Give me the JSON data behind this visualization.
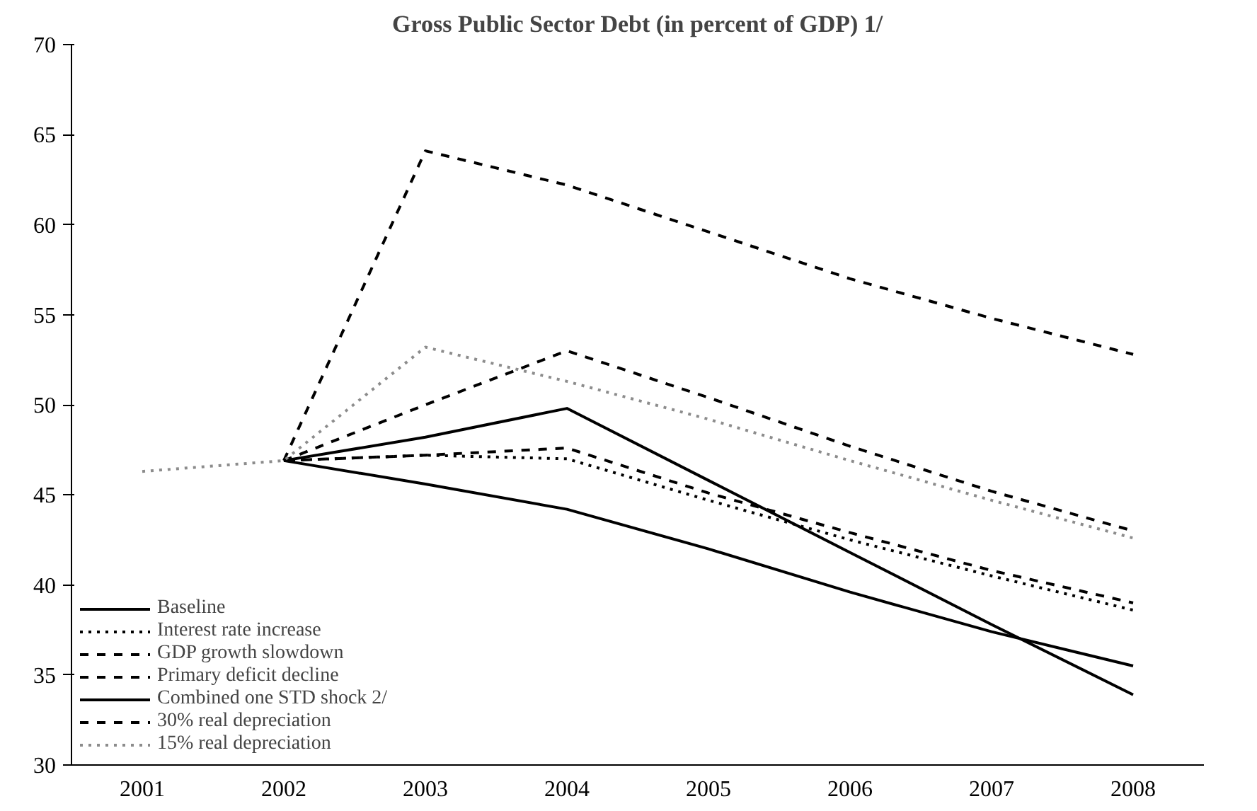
{
  "chart_data": {
    "type": "line",
    "title": "Gross Public Sector Debt (in percent of GDP) 1/",
    "categories": [
      "2001",
      "2002",
      "2003",
      "2004",
      "2005",
      "2006",
      "2007",
      "2008"
    ],
    "ylim": [
      30,
      70
    ],
    "yticks": [
      30,
      35,
      40,
      45,
      50,
      55,
      60,
      65,
      70
    ],
    "grid": false,
    "legend": "bottom left",
    "marker": "none",
    "series": [
      {
        "name": "Baseline",
        "color": "#000000",
        "line_style": "solid",
        "values": [
          null,
          46.9,
          45.6,
          44.2,
          42.0,
          39.6,
          37.4,
          35.5
        ]
      },
      {
        "name": "Interest rate increase",
        "color": "#000000",
        "line_style": "dotted",
        "values": [
          null,
          46.9,
          47.2,
          47.0,
          44.7,
          42.5,
          40.5,
          38.6
        ]
      },
      {
        "name": "GDP growth slowdown",
        "color": "#000000",
        "line_style": "dashed",
        "values": [
          null,
          46.9,
          50.0,
          53.0,
          50.4,
          47.7,
          45.2,
          43.0
        ]
      },
      {
        "name": "Primary deficit decline",
        "color": "#000000",
        "line_style": "dashed",
        "values": [
          null,
          46.9,
          47.2,
          47.6,
          45.1,
          42.9,
          40.8,
          39.0
        ]
      },
      {
        "name": "Combined one STD shock 2/",
        "color": "#000000",
        "line_style": "solid",
        "values": [
          null,
          46.9,
          48.2,
          49.8,
          45.8,
          41.8,
          37.8,
          33.9
        ]
      },
      {
        "name": "30% real depreciation",
        "color": "#000000",
        "line_style": "dashed",
        "values": [
          null,
          46.9,
          64.1,
          62.2,
          59.6,
          57.0,
          54.8,
          52.8
        ]
      },
      {
        "name": "15% real depreciation",
        "color": "#8c8c8c",
        "line_style": "dotted",
        "values": [
          46.3,
          46.9,
          53.2,
          51.3,
          49.2,
          46.9,
          44.7,
          42.6
        ]
      }
    ]
  }
}
